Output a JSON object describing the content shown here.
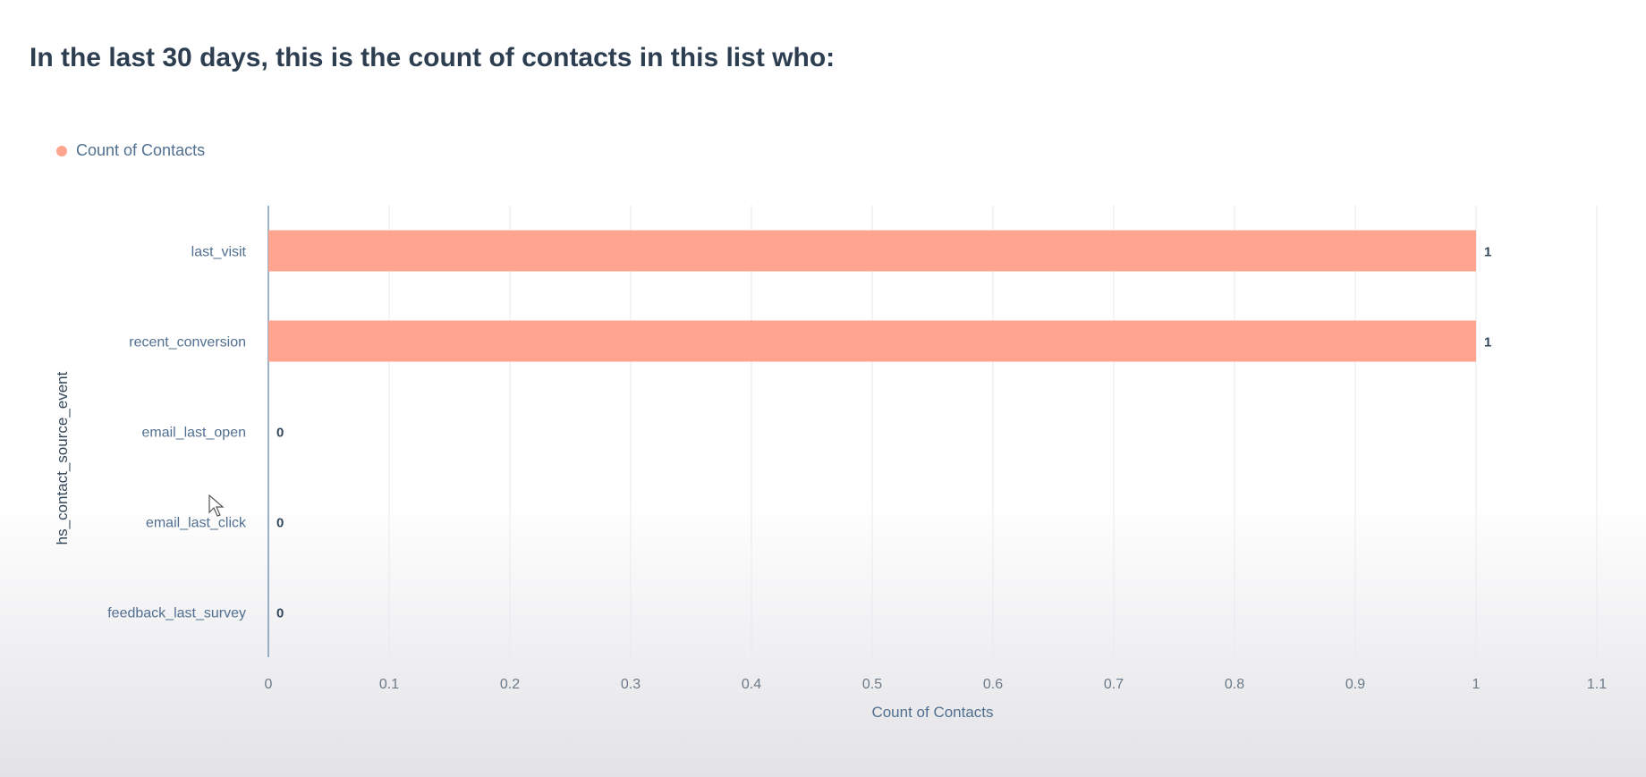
{
  "header": {
    "title": "In the last 30 days, this is the count of contacts in this list who:"
  },
  "legend": {
    "label": "Count of Contacts",
    "color": "#ffa58f"
  },
  "chart_data": {
    "type": "bar",
    "orientation": "horizontal",
    "categories": [
      "last_visit",
      "recent_conversion",
      "email_last_open",
      "email_last_click",
      "feedback_last_survey"
    ],
    "series": [
      {
        "name": "Count of Contacts",
        "values": [
          1,
          1,
          0,
          0,
          0
        ],
        "color": "#ffa58f"
      }
    ],
    "data_labels": [
      "1",
      "1",
      "0",
      "0",
      "0"
    ],
    "xlabel": "Count of Contacts",
    "ylabel": "hs_contact_source_event",
    "xlim": [
      0,
      1.1
    ],
    "xticks": [
      "0",
      "0.1",
      "0.2",
      "0.3",
      "0.4",
      "0.5",
      "0.6",
      "0.7",
      "0.8",
      "0.9",
      "1",
      "1.1"
    ],
    "grid": true,
    "legend_position": "top-left"
  }
}
